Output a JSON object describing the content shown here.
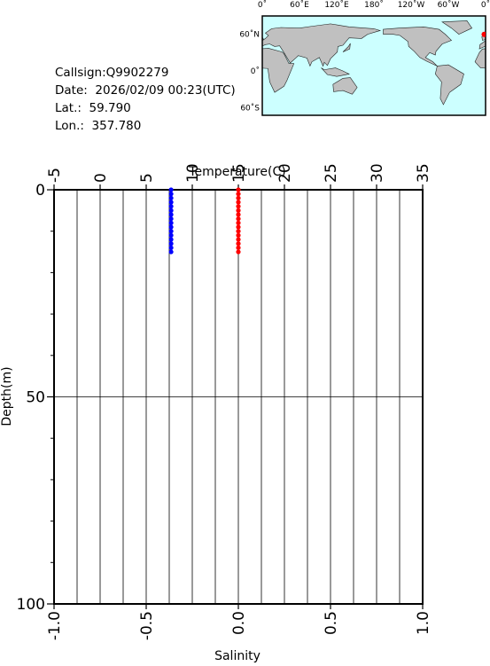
{
  "info": {
    "lines": [
      "Callsign:Q9902279",
      "Date:  2026/02/09 00:23(UTC)",
      "Lat.:  59.790",
      "Lon.:  357.780"
    ]
  },
  "map": {
    "top_labels": [
      "0˚",
      "60˚E",
      "120˚E",
      "180˚",
      "120˚W",
      "60˚W",
      "0˚"
    ],
    "left_labels": [
      "60˚N",
      "0˚",
      "60˚S"
    ]
  },
  "chart_data": {
    "type": "scatter",
    "xlabel": "Temperature(C)",
    "x2label": "Salinity",
    "ylabel": "Depth(m)",
    "xlim": [
      -5,
      35
    ],
    "xticks": [
      -5,
      0,
      5,
      10,
      15,
      20,
      25,
      30,
      35
    ],
    "x2lim": [
      -1,
      1
    ],
    "x2ticks": [
      {
        "value": -1,
        "label": "-1.0"
      },
      {
        "value": -0.5,
        "label": "-0.5"
      },
      {
        "value": 0,
        "label": "0.0"
      },
      {
        "value": 0.5,
        "label": "0.5"
      },
      {
        "value": 1,
        "label": "1.0"
      }
    ],
    "ylim": [
      0,
      100
    ],
    "yticks": [
      0,
      50,
      100
    ],
    "y_reversed": true,
    "x_grid_step": 2.5,
    "y_minor_step": 10,
    "grid": true,
    "depths": [
      0,
      1,
      2,
      3,
      4,
      5,
      6,
      7,
      8,
      9,
      10,
      11,
      12,
      13,
      14,
      15
    ],
    "series": [
      {
        "color": "#0000ff",
        "axis": "x",
        "values": [
          7.7,
          7.7,
          7.7,
          7.7,
          7.7,
          7.7,
          7.7,
          7.7,
          7.7,
          7.7,
          7.7,
          7.7,
          7.7,
          7.7,
          7.7,
          7.7
        ]
      },
      {
        "color": "#ff0000",
        "axis": "x2",
        "values": [
          0,
          0,
          0,
          0,
          0,
          0,
          0,
          0,
          0,
          0,
          0,
          0,
          0,
          0,
          0,
          0
        ]
      }
    ]
  }
}
